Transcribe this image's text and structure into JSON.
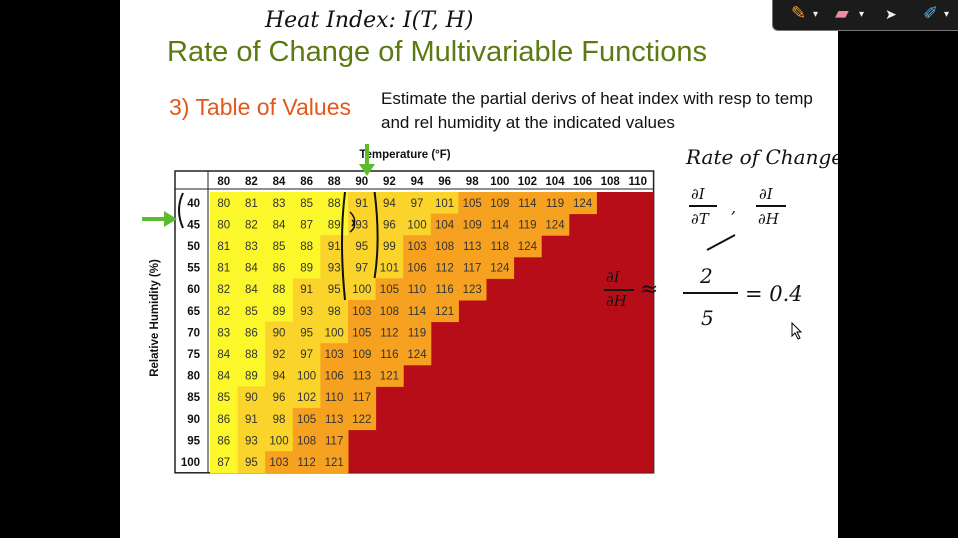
{
  "handwritten_title": "Heat Index:  I(T, H)",
  "slide": {
    "title": "Rate of Change of Multivariable Functions",
    "subtitle": "3) Table of Values",
    "instructions": "Estimate the partial derivs of heat index with resp to temp and rel humidity at the indicated values"
  },
  "table": {
    "temp_label": "Temperature (°F)",
    "humidity_label": "Relative Humidity (%)",
    "temps": [
      80,
      82,
      84,
      86,
      88,
      90,
      92,
      94,
      96,
      98,
      100,
      102,
      104,
      106,
      108,
      110
    ],
    "humidities": [
      40,
      45,
      50,
      55,
      60,
      65,
      70,
      75,
      80,
      85,
      90,
      95,
      100
    ],
    "rows": [
      [
        80,
        81,
        83,
        85,
        88,
        91,
        94,
        97,
        101,
        105,
        109,
        114,
        119,
        124
      ],
      [
        80,
        82,
        84,
        87,
        89,
        93,
        96,
        100,
        104,
        109,
        114,
        119,
        124
      ],
      [
        81,
        83,
        85,
        88,
        91,
        95,
        99,
        103,
        108,
        113,
        118,
        124
      ],
      [
        81,
        84,
        86,
        89,
        93,
        97,
        101,
        106,
        112,
        117,
        124
      ],
      [
        82,
        84,
        88,
        91,
        95,
        100,
        105,
        110,
        116,
        123
      ],
      [
        82,
        85,
        89,
        93,
        98,
        103,
        108,
        114,
        121
      ],
      [
        83,
        86,
        90,
        95,
        100,
        105,
        112,
        119
      ],
      [
        84,
        88,
        92,
        97,
        103,
        109,
        116,
        124
      ],
      [
        84,
        89,
        94,
        100,
        106,
        113,
        121
      ],
      [
        85,
        90,
        96,
        102,
        110,
        117
      ],
      [
        86,
        91,
        98,
        105,
        113,
        122
      ],
      [
        86,
        93,
        100,
        108,
        117
      ],
      [
        87,
        95,
        103,
        112,
        121
      ]
    ],
    "colors": {
      "yellow": "#fcf72b",
      "gold": "#fad42a",
      "orange": "#f7a121",
      "dark_orange": "#f06b1d",
      "red": "#e8381d",
      "dark_red": "#b60d18"
    }
  },
  "notes": {
    "rate_of_change": "Rate of Change",
    "partial_T_num": "∂I",
    "partial_T_den": "∂T",
    "comma": ",",
    "partial_H_num": "∂I",
    "partial_H_den": "∂H",
    "approx_lhs_num": "∂I",
    "approx_lhs_den": "∂H",
    "approx_sign": "≈",
    "approx_num": "2",
    "approx_den": "5",
    "result": "= 0.4"
  },
  "annotation_colors": {
    "arrows": "#5dbb2e"
  }
}
